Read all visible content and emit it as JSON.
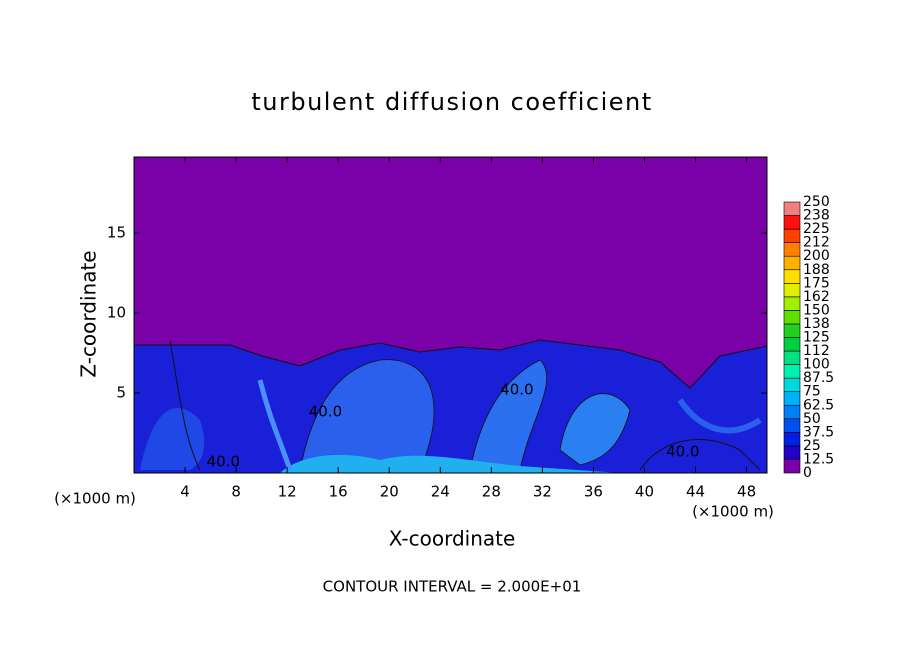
{
  "chart_data": {
    "type": "contour",
    "title": "turbulent diffusion coefficient",
    "xlabel": "X-coordinate",
    "ylabel": "Z-coordinate",
    "x_unit_label": "(×1000 m)",
    "footer": "CONTOUR INTERVAL = 2.000E+01",
    "xlim": [
      0,
      49.6
    ],
    "xticks": [
      4,
      8,
      12,
      16,
      20,
      24,
      28,
      32,
      36,
      40,
      44,
      48
    ],
    "ylim": [
      0,
      19.75
    ],
    "yticks": [
      5,
      10,
      15
    ],
    "contour_labels": [
      {
        "x": 7,
        "z": 0.7,
        "label": "40.0"
      },
      {
        "x": 15,
        "z": 3.8,
        "label": "40.0"
      },
      {
        "x": 30,
        "z": 5.2,
        "label": "40.0"
      },
      {
        "x": 43,
        "z": 1.3,
        "label": "40.0"
      }
    ],
    "colorbar": {
      "ticks": [
        0,
        12.5,
        25,
        37.5,
        50,
        62.5,
        75,
        87.5,
        100,
        {
          "value": 112.5,
          "label": "112"
        },
        125,
        {
          "value": 137.5,
          "label": "138"
        },
        150,
        {
          "value": 162.5,
          "label": "162"
        },
        175,
        {
          "value": 187.5,
          "label": "188"
        },
        200,
        {
          "value": 212.5,
          "label": "212"
        },
        225,
        {
          "value": 237.5,
          "label": "238"
        },
        250
      ],
      "colors": [
        "#7a00a8",
        "#2200c8",
        "#0020e6",
        "#0050f0",
        "#0080f8",
        "#00b0f8",
        "#00d8e0",
        "#00f0b0",
        "#00e080",
        "#00d040",
        "#20d020",
        "#60e000",
        "#a0f000",
        "#e0f000",
        "#ffe000",
        "#ffb000",
        "#ff8000",
        "#ff4000",
        "#ff1010",
        "#f08080"
      ]
    }
  }
}
